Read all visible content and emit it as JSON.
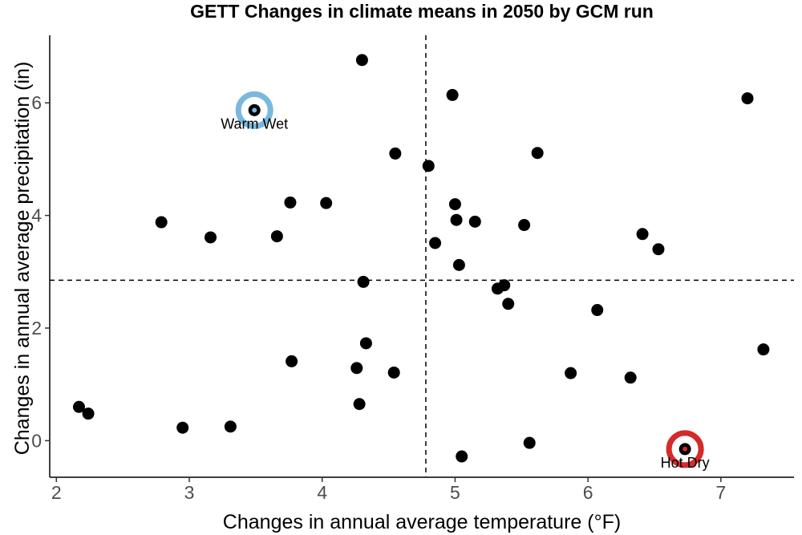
{
  "chart_data": {
    "type": "scatter",
    "title": "GETT Changes in climate means in 2050 by GCM run",
    "xlabel": "Changes in annual average temperature (°F)",
    "ylabel": "Changes in annual average precipitation (in)",
    "xlim": [
      1.95,
      7.55
    ],
    "ylim": [
      -0.65,
      7.2
    ],
    "xticks": [
      "2",
      "3",
      "4",
      "5",
      "6",
      "7"
    ],
    "yticks": [
      "0",
      "2",
      "4",
      "6"
    ],
    "reference_lines": {
      "x": 4.78,
      "y": 2.85
    },
    "points": [
      {
        "x": 2.17,
        "y": 0.6
      },
      {
        "x": 2.24,
        "y": 0.48
      },
      {
        "x": 2.79,
        "y": 3.88
      },
      {
        "x": 2.95,
        "y": 0.23
      },
      {
        "x": 3.16,
        "y": 3.61
      },
      {
        "x": 3.31,
        "y": 0.25
      },
      {
        "x": 3.66,
        "y": 3.63
      },
      {
        "x": 3.76,
        "y": 4.23
      },
      {
        "x": 3.77,
        "y": 1.41
      },
      {
        "x": 4.03,
        "y": 4.22
      },
      {
        "x": 4.26,
        "y": 1.29
      },
      {
        "x": 4.28,
        "y": 0.65
      },
      {
        "x": 4.3,
        "y": 6.76
      },
      {
        "x": 4.31,
        "y": 2.82
      },
      {
        "x": 4.33,
        "y": 1.73
      },
      {
        "x": 4.54,
        "y": 1.21
      },
      {
        "x": 4.55,
        "y": 5.1
      },
      {
        "x": 4.8,
        "y": 4.88
      },
      {
        "x": 4.85,
        "y": 3.51
      },
      {
        "x": 4.98,
        "y": 6.14
      },
      {
        "x": 5.0,
        "y": 4.2
      },
      {
        "x": 5.01,
        "y": 3.92
      },
      {
        "x": 5.03,
        "y": 3.12
      },
      {
        "x": 5.05,
        "y": -0.28
      },
      {
        "x": 5.15,
        "y": 3.89
      },
      {
        "x": 5.32,
        "y": 2.7
      },
      {
        "x": 5.37,
        "y": 2.76
      },
      {
        "x": 5.4,
        "y": 2.43
      },
      {
        "x": 5.52,
        "y": 3.83
      },
      {
        "x": 5.56,
        "y": -0.04
      },
      {
        "x": 5.62,
        "y": 5.11
      },
      {
        "x": 5.87,
        "y": 1.2
      },
      {
        "x": 6.07,
        "y": 2.32
      },
      {
        "x": 6.32,
        "y": 1.12
      },
      {
        "x": 6.41,
        "y": 3.67
      },
      {
        "x": 6.53,
        "y": 3.4
      },
      {
        "x": 7.2,
        "y": 6.08
      },
      {
        "x": 7.32,
        "y": 1.62
      },
      {
        "x": 3.49,
        "y": 5.87
      },
      {
        "x": 6.73,
        "y": -0.15
      }
    ],
    "highlighted": [
      {
        "label": "Warm Wet",
        "x": 3.49,
        "y": 5.87,
        "color": "#7ab8e0"
      },
      {
        "label": "Hot Dry",
        "x": 6.73,
        "y": -0.15,
        "color": "#d42a2a"
      }
    ]
  }
}
